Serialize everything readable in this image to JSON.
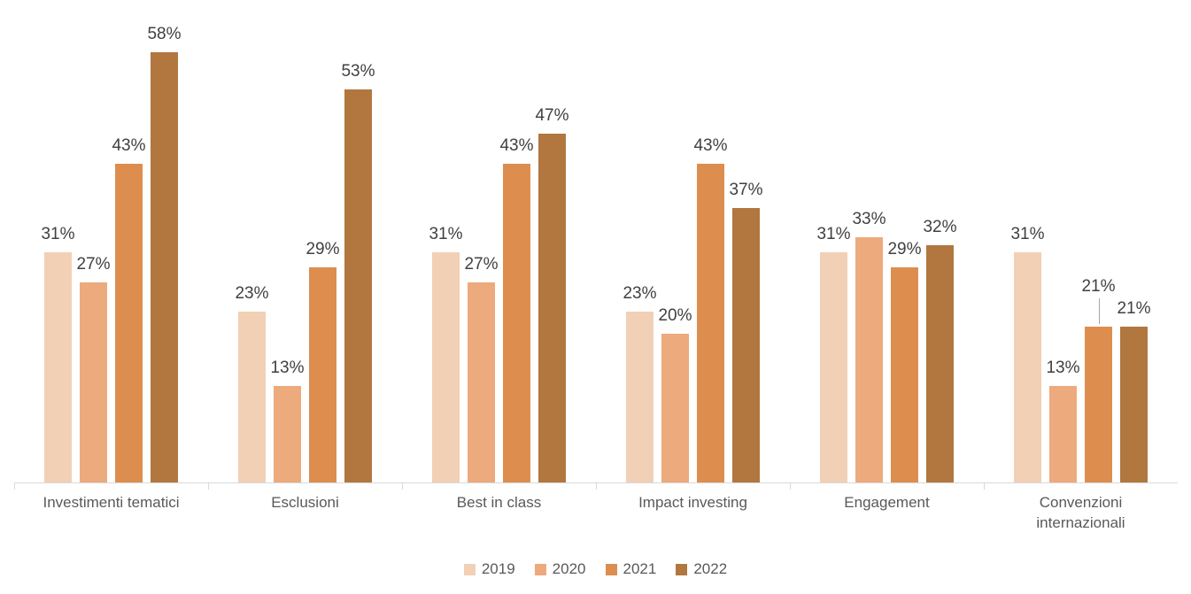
{
  "chart_data": {
    "type": "bar",
    "categories": [
      "Investimenti tematici",
      "Esclusioni",
      "Best in class",
      "Impact investing",
      "Engagement",
      "Convenzioni internazionali"
    ],
    "series": [
      {
        "name": "2019",
        "color": "#f2d0b5",
        "values": [
          31,
          23,
          31,
          23,
          31,
          31
        ]
      },
      {
        "name": "2020",
        "color": "#ecaa7d",
        "values": [
          27,
          13,
          27,
          20,
          33,
          13
        ]
      },
      {
        "name": "2021",
        "color": "#dd8e4f",
        "values": [
          43,
          29,
          43,
          43,
          29,
          21
        ]
      },
      {
        "name": "2022",
        "color": "#b1773f",
        "values": [
          58,
          53,
          47,
          37,
          32,
          21
        ]
      }
    ],
    "title": "",
    "xlabel": "",
    "ylabel": "",
    "value_suffix": "%",
    "ylim": [
      0,
      65
    ],
    "grid": false,
    "data_labels": true,
    "legend_position": "bottom",
    "callout": {
      "category_index": 5,
      "series_index": 2
    },
    "colors": {
      "axis_line": "#d9d9d9",
      "leader_line": "#a6a6a6",
      "data_label_text": "#404040",
      "category_label_text": "#595959",
      "legend_text": "#595959",
      "background": "#ffffff"
    }
  }
}
